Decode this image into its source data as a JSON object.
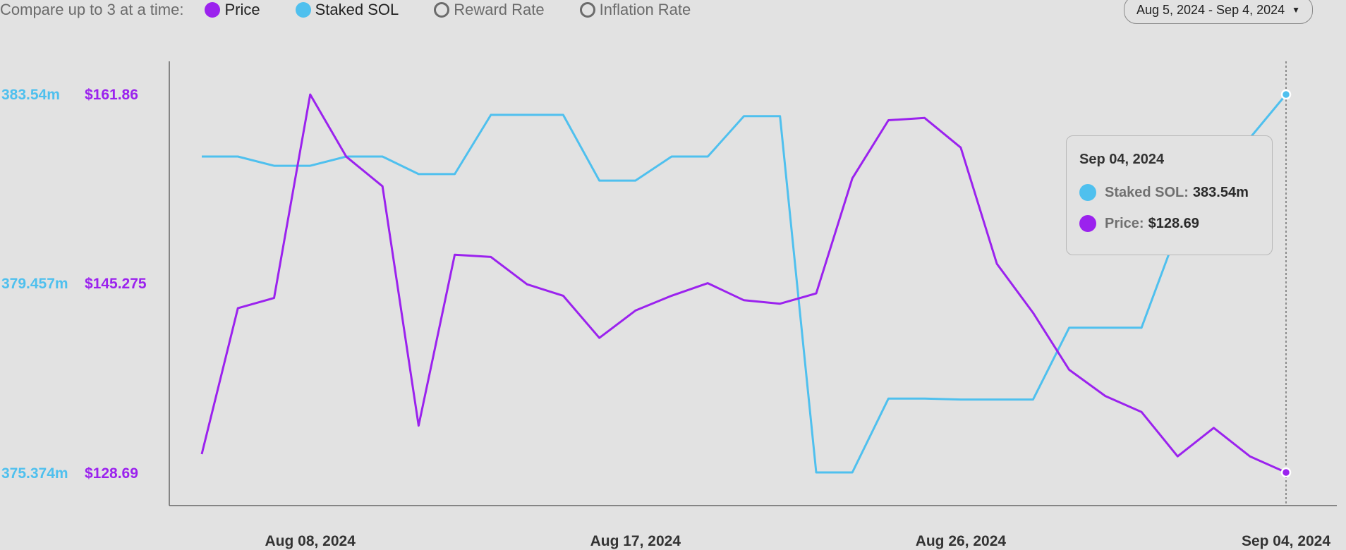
{
  "toolbar": {
    "compare_label": "Compare up to 3 at a time:",
    "metrics": [
      {
        "label": "Price",
        "selected": true,
        "color": "#9b22ee"
      },
      {
        "label": "Staked SOL",
        "selected": true,
        "color": "#4fc0ee"
      },
      {
        "label": "Reward Rate",
        "selected": false
      },
      {
        "label": "Inflation Rate",
        "selected": false
      }
    ]
  },
  "date_range": {
    "label": "Aug 5, 2024 - Sep 4, 2024"
  },
  "tooltip": {
    "date": "Sep 04, 2024",
    "staked_key": "Staked SOL:",
    "staked_value": "383.54m",
    "price_key": "Price:",
    "price_value": "$128.69"
  },
  "chart_data": {
    "type": "line",
    "x": [
      "2024-08-05",
      "2024-08-06",
      "2024-08-07",
      "2024-08-08",
      "2024-08-09",
      "2024-08-10",
      "2024-08-11",
      "2024-08-12",
      "2024-08-13",
      "2024-08-14",
      "2024-08-15",
      "2024-08-16",
      "2024-08-17",
      "2024-08-18",
      "2024-08-19",
      "2024-08-20",
      "2024-08-21",
      "2024-08-22",
      "2024-08-23",
      "2024-08-24",
      "2024-08-25",
      "2024-08-26",
      "2024-08-27",
      "2024-08-28",
      "2024-08-29",
      "2024-08-30",
      "2024-08-31",
      "2024-09-01",
      "2024-09-02",
      "2024-09-03",
      "2024-09-04"
    ],
    "x_tick_labels": [
      "Aug 08, 2024",
      "Aug 17, 2024",
      "Aug 26, 2024",
      "Sep 04, 2024"
    ],
    "x_tick_values": [
      "2024-08-08",
      "2024-08-17",
      "2024-08-26",
      "2024-09-04"
    ],
    "series": [
      {
        "name": "Staked SOL",
        "color": "#4fc0ee",
        "unit": "m",
        "ylim": [
          375.374,
          383.54
        ],
        "tick_labels": [
          "383.54m",
          "379.457m",
          "375.374m"
        ],
        "values": [
          382.2,
          382.2,
          382.0,
          382.0,
          382.2,
          382.2,
          381.82,
          381.82,
          383.1,
          383.1,
          383.1,
          381.68,
          381.68,
          382.2,
          382.2,
          383.07,
          383.07,
          375.374,
          375.374,
          376.97,
          376.97,
          376.95,
          376.95,
          376.95,
          378.5,
          378.5,
          378.5,
          380.6,
          380.6,
          382.6,
          383.54
        ]
      },
      {
        "name": "Price",
        "color": "#9b22ee",
        "unit": "$",
        "ylim": [
          128.69,
          161.86
        ],
        "tick_labels": [
          "$161.86",
          "$145.275",
          "$128.69"
        ],
        "values": [
          130.3,
          143.1,
          144.0,
          161.86,
          156.4,
          153.8,
          132.8,
          147.8,
          147.6,
          145.2,
          144.2,
          140.5,
          142.9,
          144.2,
          145.3,
          143.8,
          143.5,
          144.4,
          154.5,
          159.6,
          159.8,
          157.2,
          147.0,
          142.7,
          137.7,
          135.4,
          134.0,
          130.1,
          132.6,
          130.1,
          128.69
        ]
      }
    ],
    "grid": false,
    "legend": "top-left",
    "crosshair_at": "2024-09-04"
  }
}
